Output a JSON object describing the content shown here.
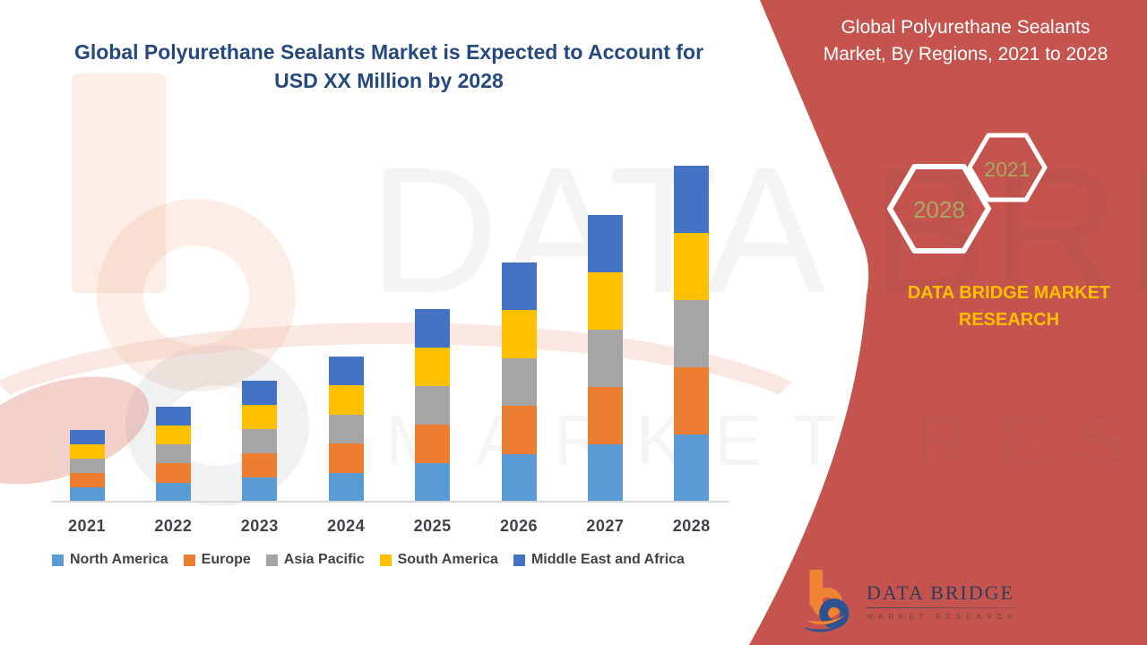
{
  "header": {
    "title_line1": "Global Polyurethane Sealants Market is Expected to Account for",
    "title_line2": "USD XX Million by 2028"
  },
  "side_panel": {
    "title_line1": "Global Polyurethane Sealants",
    "title_line2": "Market, By Regions, 2021 to 2028",
    "hexagon_years": [
      "2028",
      "2021"
    ],
    "brand_line1": "DATA BRIDGE MARKET",
    "brand_line2": "RESEARCH",
    "logo_name": "DATA BRIDGE",
    "logo_subtitle": "MARKET RESEARCH",
    "colors": {
      "panel_bg": "#C6544E",
      "brand_text": "#FFC000",
      "hexagon_year_text": "#A6A95F",
      "hexagon_outline": "#FFFFFF"
    }
  },
  "watermark": {
    "line1": "DATA BRIDGE",
    "line2": "MARKET RESEARCH"
  },
  "chart_data": {
    "type": "bar",
    "stacked": true,
    "title": "Global Polyurethane Sealants Market is Expected to Account for USD XX Million by 2028",
    "categories": [
      "2021",
      "2022",
      "2023",
      "2024",
      "2025",
      "2026",
      "2027",
      "2028"
    ],
    "series": [
      {
        "name": "North America",
        "color": "#5B9BD5",
        "values": [
          16,
          21.3,
          27,
          32.5,
          43,
          53.5,
          64,
          75
        ]
      },
      {
        "name": "Europe",
        "color": "#ED7D31",
        "values": [
          16,
          21.3,
          27,
          32.5,
          43,
          53.5,
          64,
          75
        ]
      },
      {
        "name": "Asia Pacific",
        "color": "#A5A5A5",
        "values": [
          16,
          21.3,
          27,
          32.5,
          43,
          53.5,
          64,
          75
        ]
      },
      {
        "name": "South America",
        "color": "#FFC000",
        "values": [
          16,
          21.3,
          27,
          32.5,
          43,
          53.5,
          64,
          75
        ]
      },
      {
        "name": "Middle East and Africa",
        "color": "#4472C4",
        "values": [
          16,
          21.3,
          27,
          32.5,
          43,
          53.5,
          64,
          75
        ]
      }
    ],
    "total_bar_heights_relative": [
      80,
      106.5,
      135,
      162.5,
      215,
      267.5,
      320,
      375
    ],
    "value_axis": {
      "visible": false,
      "unit": "USD Million (values undisclosed, shown as XX)"
    },
    "xlabel": "",
    "ylabel": "",
    "legend_position": "bottom",
    "grid": false
  }
}
